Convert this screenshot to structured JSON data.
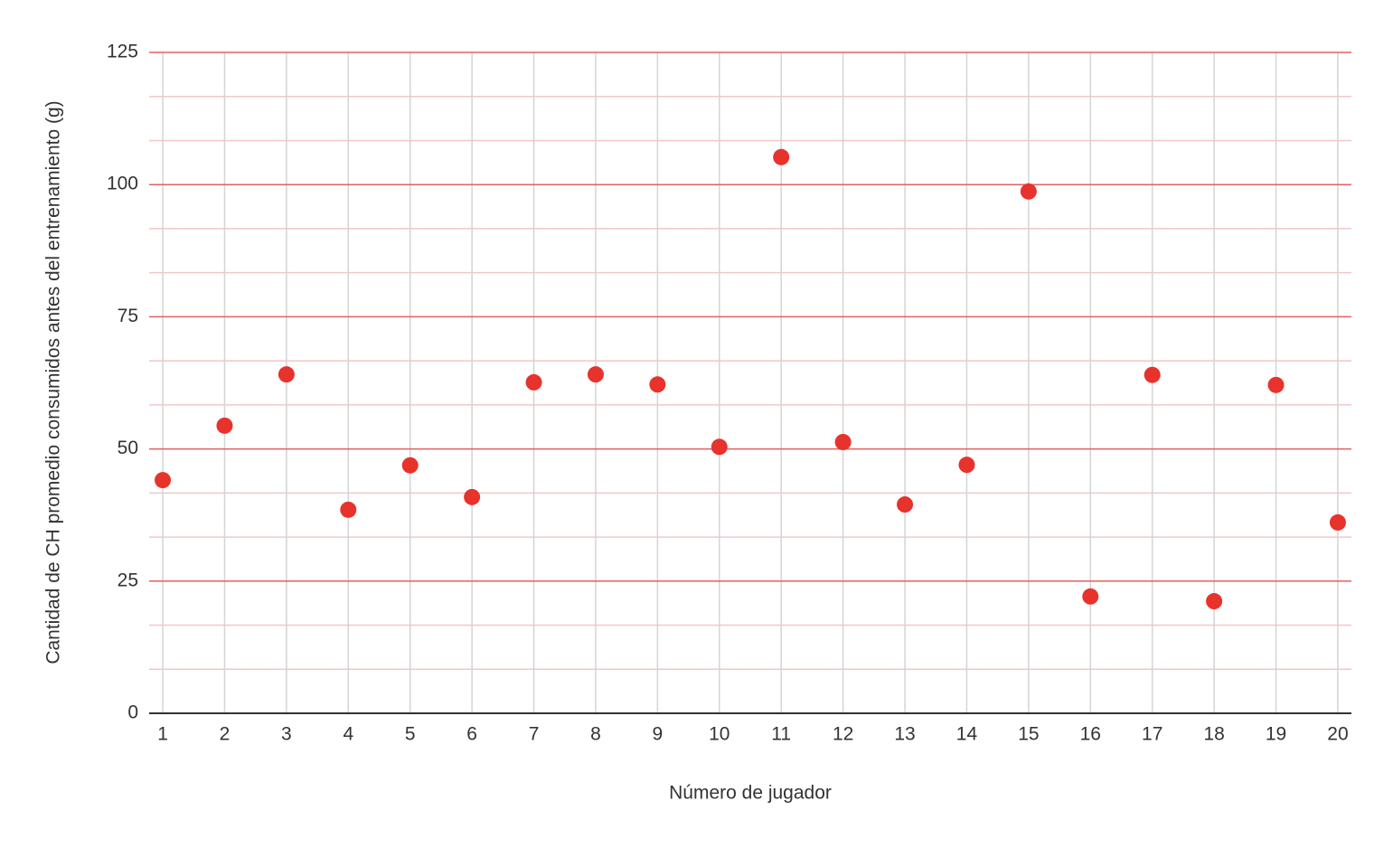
{
  "chart_data": {
    "type": "scatter",
    "x_label": "Número de jugador",
    "y_label": "Cantidad de CH promedio consumidos antes del entrenamiento (g)",
    "x": [
      1,
      2,
      3,
      4,
      5,
      6,
      7,
      8,
      9,
      10,
      11,
      12,
      13,
      14,
      15,
      16,
      17,
      18,
      19,
      20
    ],
    "values": [
      44.1,
      54.4,
      64.1,
      38.5,
      46.9,
      40.9,
      62.6,
      64.1,
      62.2,
      50.4,
      105.2,
      51.3,
      39.5,
      47.0,
      98.7,
      22.1,
      64.0,
      21.2,
      62.1,
      36.1
    ],
    "color": "#e8322c",
    "xlim": [
      0.78,
      20.22
    ],
    "xticks": [
      1,
      2,
      3,
      4,
      5,
      6,
      7,
      8,
      9,
      10,
      11,
      12,
      13,
      14,
      15,
      16,
      17,
      18,
      19,
      20
    ],
    "ylim": [
      0,
      125
    ],
    "yticks": [
      0,
      25,
      50,
      75,
      100,
      125
    ],
    "grid": true,
    "minor_grid": 2
  }
}
